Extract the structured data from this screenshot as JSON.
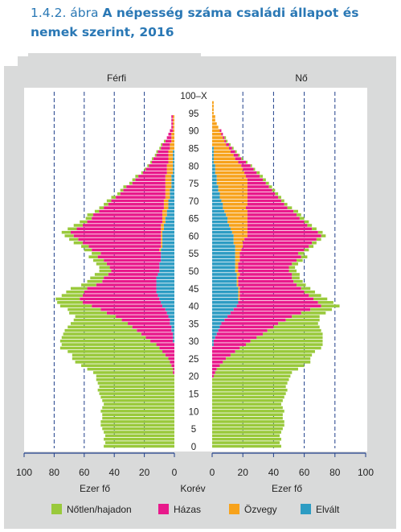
{
  "header": {
    "figure_number": "1.4.2. ábra",
    "title": "A népesség száma családi állapot és nemek szerint, 2016"
  },
  "colors": {
    "frame": "#d9dada",
    "single": "#99c93b",
    "married": "#e8198b",
    "widowed": "#f7a21b",
    "divorced": "#2d9cc3",
    "title": "#2a78b5",
    "gridline": "#1f3f8a",
    "axis": "#1f3f8a"
  },
  "chart_data": {
    "type": "population-pyramid",
    "title": "A népesség száma családi állapot és nemek szerint, 2016",
    "left_label": "Férfi",
    "right_label": "Nő",
    "xlabel_left": "Ezer fő",
    "xlabel_right": "Ezer fő",
    "center_label": "Korév",
    "xlim": [
      0,
      100
    ],
    "x_ticks": [
      "100",
      "80",
      "60",
      "40",
      "20",
      "0"
    ],
    "x_ticks_right": [
      "0",
      "20",
      "40",
      "60",
      "80",
      "100"
    ],
    "age_ticks": [
      "0",
      "5",
      "10",
      "15",
      "20",
      "25",
      "30",
      "35",
      "40",
      "45",
      "50",
      "55",
      "60",
      "65",
      "70",
      "75",
      "80",
      "85",
      "90",
      "95",
      "100–X"
    ],
    "series": [
      {
        "name": "Nőtlen/hajadon",
        "color_key": "single"
      },
      {
        "name": "Házas",
        "color_key": "married"
      },
      {
        "name": "Özvegy",
        "color_key": "widowed"
      },
      {
        "name": "Elvált",
        "color_key": "divorced"
      }
    ],
    "ages": [
      0,
      1,
      2,
      3,
      4,
      5,
      6,
      7,
      8,
      9,
      10,
      11,
      12,
      13,
      14,
      15,
      16,
      17,
      18,
      19,
      20,
      21,
      22,
      23,
      24,
      25,
      26,
      27,
      28,
      29,
      30,
      31,
      32,
      33,
      34,
      35,
      36,
      37,
      38,
      39,
      40,
      41,
      42,
      43,
      44,
      45,
      46,
      47,
      48,
      49,
      50,
      51,
      52,
      53,
      54,
      55,
      56,
      57,
      58,
      59,
      60,
      61,
      62,
      63,
      64,
      65,
      66,
      67,
      68,
      69,
      70,
      71,
      72,
      73,
      74,
      75,
      76,
      77,
      78,
      79,
      80,
      81,
      82,
      83,
      84,
      85,
      86,
      87,
      88,
      89,
      90,
      91,
      92,
      93,
      94,
      95,
      96,
      97,
      98,
      99,
      100
    ],
    "male": {
      "single": [
        47,
        46,
        47,
        46,
        47,
        48,
        49,
        49,
        48,
        48,
        49,
        48,
        47,
        48,
        49,
        50,
        51,
        50,
        51,
        52,
        52,
        53,
        57,
        60,
        63,
        64,
        62,
        63,
        66,
        63,
        60,
        56,
        52,
        48,
        43,
        38,
        32,
        27,
        25,
        22,
        21,
        17,
        16,
        14,
        12,
        11,
        10,
        10,
        9,
        9,
        8,
        7,
        7,
        7,
        6,
        6,
        5,
        5,
        6,
        6,
        6,
        6,
        6,
        6,
        5,
        4,
        4,
        3,
        3,
        3,
        3,
        3,
        2,
        2,
        2,
        2,
        2,
        2,
        1,
        1,
        1,
        1,
        1,
        1,
        1,
        1,
        1,
        1,
        0,
        0,
        0,
        0,
        0,
        0,
        0,
        0,
        0,
        0,
        0,
        0,
        0
      ],
      "married": [
        0,
        0,
        0,
        0,
        0,
        0,
        0,
        0,
        0,
        0,
        0,
        0,
        0,
        0,
        0,
        0,
        0,
        0,
        0,
        0,
        0,
        1,
        1,
        2,
        3,
        4,
        6,
        8,
        10,
        12,
        15,
        18,
        21,
        23,
        26,
        28,
        32,
        35,
        40,
        43,
        47,
        52,
        53,
        50,
        48,
        46,
        40,
        36,
        35,
        33,
        32,
        33,
        35,
        38,
        42,
        40,
        45,
        48,
        52,
        55,
        58,
        60,
        56,
        52,
        50,
        47,
        46,
        42,
        40,
        37,
        35,
        33,
        30,
        28,
        26,
        22,
        20,
        18,
        16,
        14,
        12,
        11,
        10,
        8,
        7,
        6,
        5,
        4,
        3,
        2,
        2,
        1,
        1,
        1,
        1,
        0,
        0,
        0,
        0,
        0,
        0
      ],
      "widowed": [
        0,
        0,
        0,
        0,
        0,
        0,
        0,
        0,
        0,
        0,
        0,
        0,
        0,
        0,
        0,
        0,
        0,
        0,
        0,
        0,
        0,
        0,
        0,
        0,
        0,
        0,
        0,
        0,
        0,
        0,
        0,
        0,
        0,
        0,
        0,
        0,
        0,
        0,
        0,
        0,
        0,
        0,
        0,
        0,
        0,
        0,
        0,
        0,
        0,
        0,
        0,
        0,
        0,
        0,
        0,
        0,
        1,
        1,
        1,
        1,
        1,
        1,
        2,
        2,
        2,
        2,
        3,
        3,
        3,
        3,
        3,
        3,
        3,
        3,
        4,
        4,
        4,
        4,
        4,
        4,
        4,
        3,
        3,
        3,
        3,
        3,
        3,
        2,
        2,
        2,
        1,
        1,
        1,
        1,
        1,
        0,
        0,
        0,
        0,
        0,
        0
      ],
      "divorced": [
        0,
        0,
        0,
        0,
        0,
        0,
        0,
        0,
        0,
        0,
        0,
        0,
        0,
        0,
        0,
        0,
        0,
        0,
        0,
        0,
        0,
        0,
        0,
        0,
        0,
        0,
        0,
        0,
        0,
        0,
        1,
        1,
        1,
        2,
        2,
        3,
        3,
        4,
        5,
        6,
        8,
        9,
        10,
        11,
        12,
        12,
        12,
        12,
        12,
        11,
        10,
        10,
        10,
        9,
        9,
        9,
        9,
        8,
        8,
        8,
        8,
        8,
        7,
        7,
        6,
        6,
        5,
        5,
        4,
        4,
        4,
        3,
        3,
        3,
        2,
        2,
        2,
        2,
        1,
        1,
        1,
        1,
        1,
        1,
        1,
        0,
        0,
        0,
        0,
        0,
        0,
        0,
        0,
        0,
        0,
        0,
        0,
        0,
        0,
        0,
        0
      ]
    },
    "female": {
      "single": [
        45,
        44,
        45,
        44,
        45,
        46,
        47,
        47,
        46,
        46,
        47,
        46,
        45,
        46,
        47,
        48,
        49,
        48,
        49,
        50,
        50,
        50,
        53,
        55,
        57,
        55,
        53,
        52,
        53,
        50,
        47,
        43,
        39,
        35,
        30,
        26,
        22,
        18,
        16,
        14,
        12,
        10,
        9,
        8,
        7,
        6,
        6,
        6,
        5,
        5,
        5,
        4,
        4,
        4,
        4,
        4,
        3,
        3,
        3,
        3,
        3,
        3,
        3,
        3,
        3,
        3,
        3,
        3,
        3,
        2,
        2,
        2,
        2,
        2,
        2,
        2,
        2,
        2,
        2,
        1,
        1,
        1,
        1,
        1,
        1,
        1,
        1,
        1,
        1,
        0,
        0,
        0,
        0,
        0,
        0,
        0,
        0,
        0,
        0,
        0,
        0
      ],
      "married": [
        0,
        0,
        0,
        0,
        0,
        0,
        0,
        0,
        0,
        0,
        0,
        0,
        0,
        0,
        0,
        0,
        0,
        0,
        0,
        0,
        1,
        2,
        3,
        5,
        7,
        9,
        12,
        15,
        18,
        21,
        24,
        27,
        30,
        32,
        35,
        37,
        40,
        42,
        46,
        50,
        55,
        52,
        48,
        45,
        42,
        40,
        38,
        36,
        35,
        34,
        33,
        33,
        35,
        37,
        40,
        38,
        41,
        43,
        45,
        47,
        48,
        46,
        42,
        39,
        37,
        34,
        32,
        30,
        27,
        24,
        22,
        20,
        18,
        16,
        14,
        12,
        10,
        9,
        8,
        7,
        6,
        5,
        4,
        3,
        3,
        2,
        2,
        1,
        1,
        1,
        1,
        0,
        0,
        0,
        0,
        0,
        0,
        0,
        0,
        0,
        0
      ],
      "widowed": [
        0,
        0,
        0,
        0,
        0,
        0,
        0,
        0,
        0,
        0,
        0,
        0,
        0,
        0,
        0,
        0,
        0,
        0,
        0,
        0,
        0,
        0,
        0,
        0,
        0,
        0,
        0,
        0,
        0,
        0,
        0,
        0,
        0,
        0,
        0,
        0,
        0,
        0,
        0,
        0,
        0,
        0,
        1,
        1,
        1,
        1,
        1,
        1,
        1,
        2,
        2,
        2,
        2,
        3,
        3,
        3,
        4,
        5,
        6,
        7,
        9,
        10,
        11,
        12,
        13,
        13,
        14,
        15,
        15,
        16,
        17,
        18,
        18,
        19,
        19,
        20,
        20,
        19,
        19,
        18,
        17,
        16,
        14,
        13,
        11,
        10,
        9,
        8,
        7,
        6,
        5,
        4,
        3,
        2,
        2,
        1,
        1,
        1,
        1,
        0,
        0
      ],
      "divorced": [
        0,
        0,
        0,
        0,
        0,
        0,
        0,
        0,
        0,
        0,
        0,
        0,
        0,
        0,
        0,
        0,
        0,
        0,
        0,
        0,
        0,
        0,
        0,
        0,
        0,
        0,
        0,
        0,
        0,
        1,
        1,
        2,
        3,
        4,
        5,
        6,
        8,
        10,
        12,
        14,
        16,
        17,
        17,
        17,
        17,
        17,
        16,
        16,
        16,
        16,
        15,
        15,
        15,
        15,
        15,
        15,
        15,
        15,
        14,
        14,
        14,
        13,
        12,
        11,
        10,
        10,
        9,
        8,
        7,
        7,
        6,
        5,
        5,
        4,
        4,
        3,
        3,
        3,
        2,
        2,
        2,
        1,
        1,
        1,
        1,
        1,
        0,
        0,
        0,
        0,
        0,
        0,
        0,
        0,
        0,
        0,
        0,
        0,
        0,
        0,
        0
      ]
    }
  }
}
